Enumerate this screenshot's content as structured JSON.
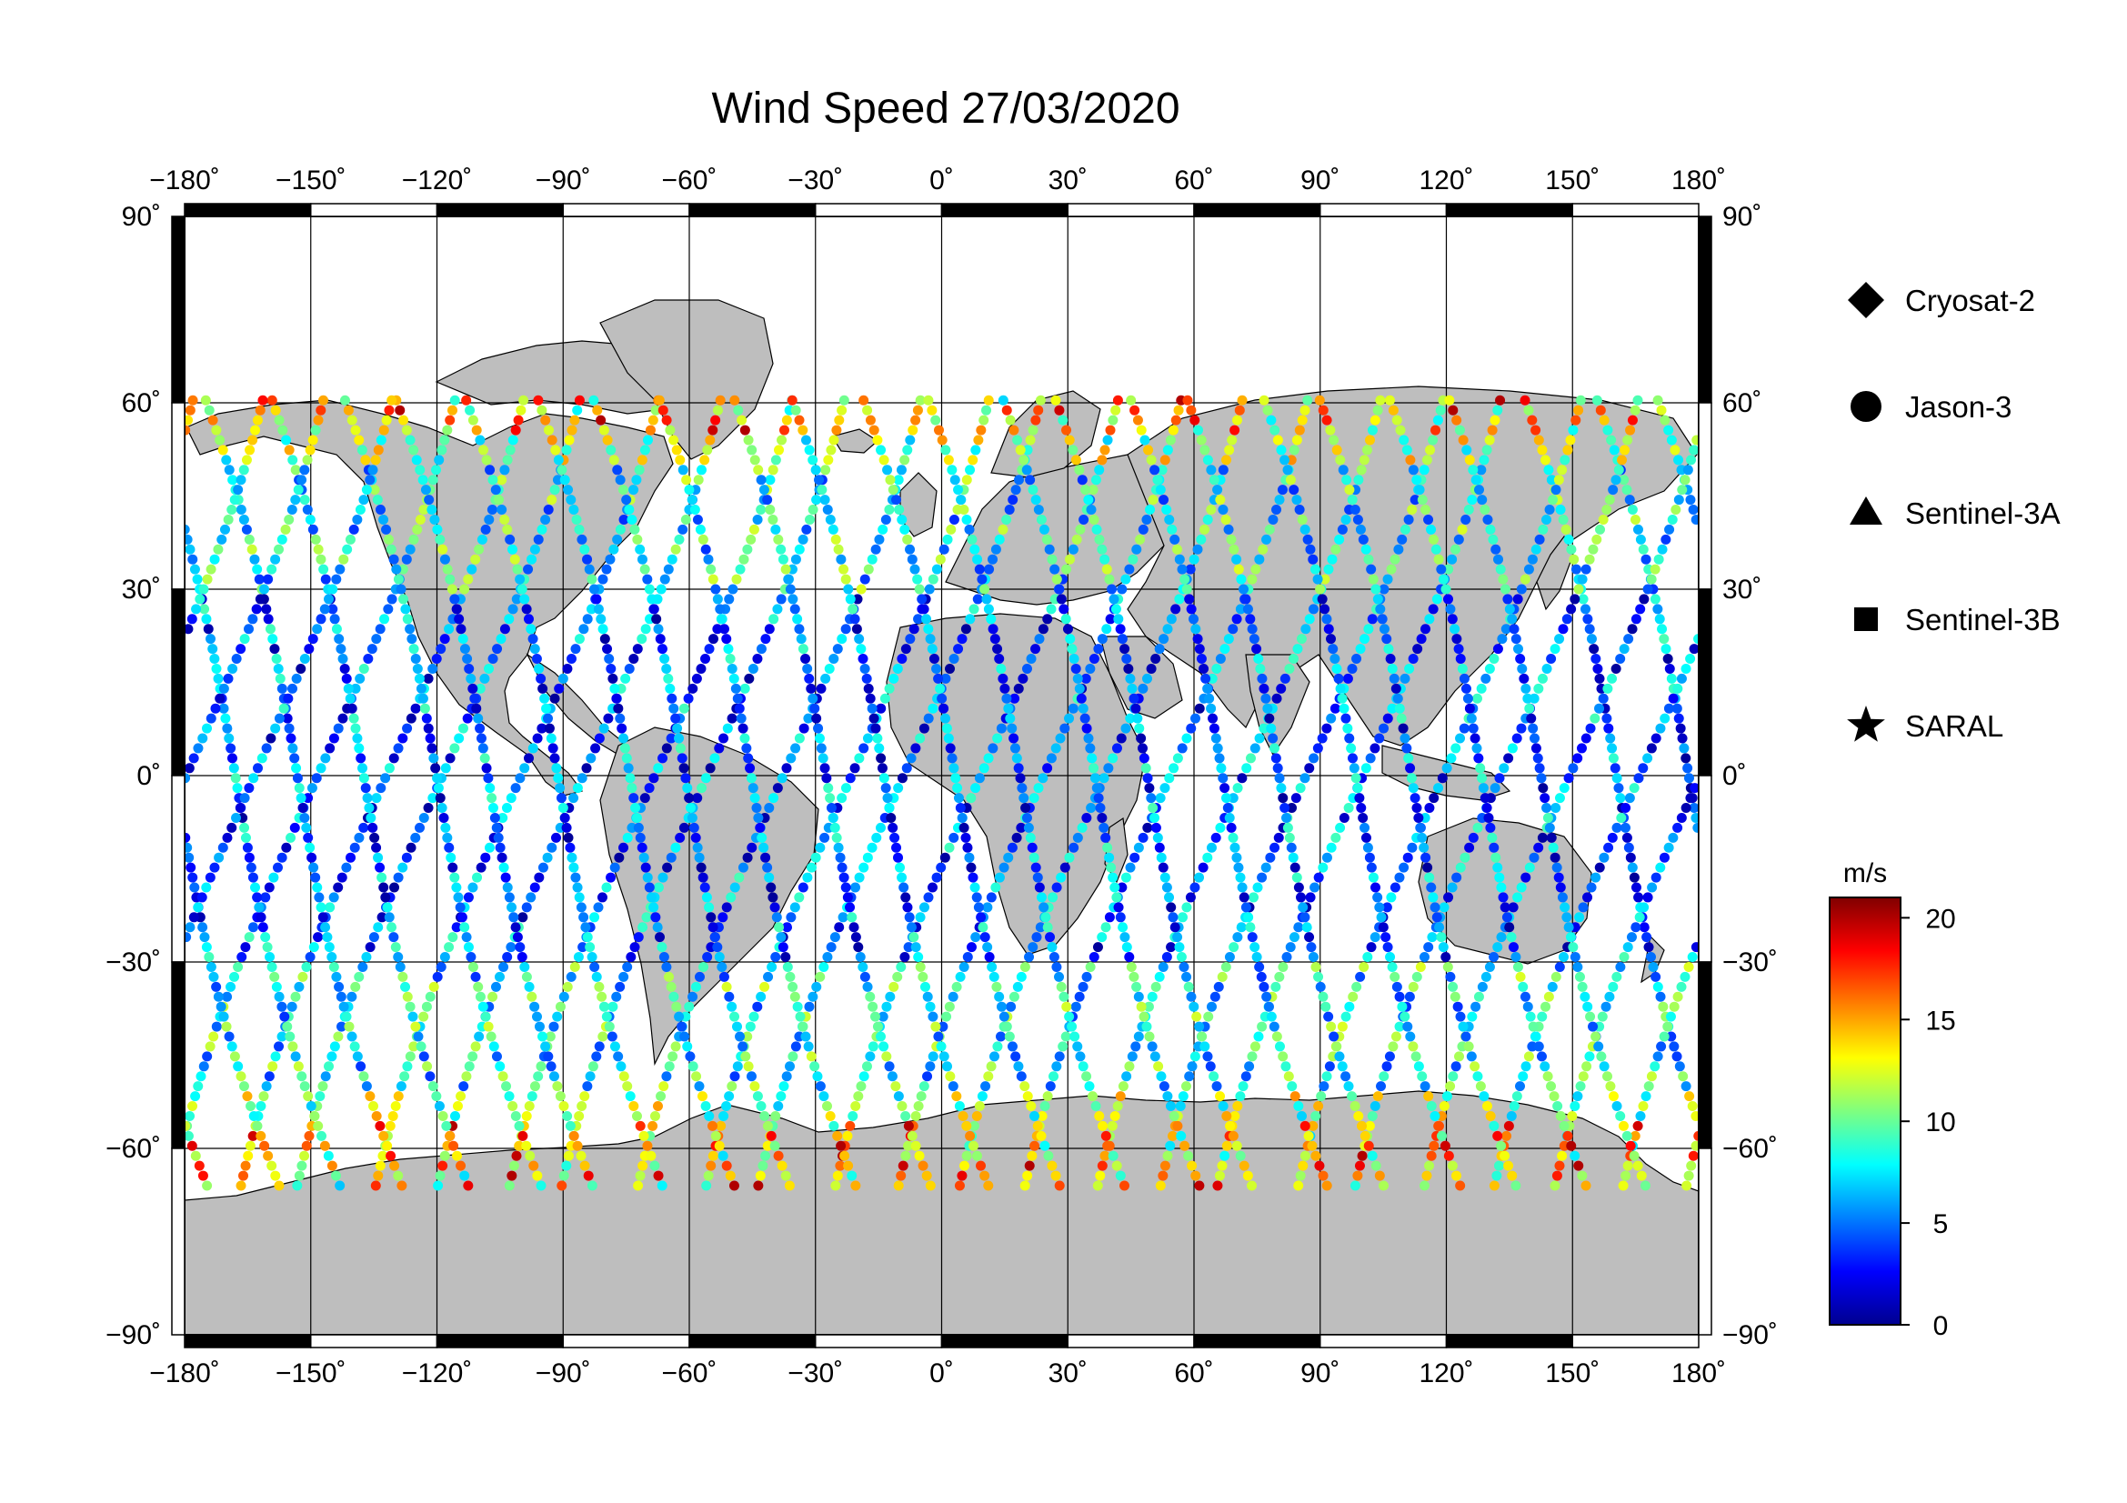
{
  "title": "Wind Speed 27/03/2020",
  "map": {
    "projection": "equirectangular",
    "lon_range": [
      -180,
      180
    ],
    "lat_range": [
      -90,
      90
    ],
    "lon_ticks": [
      -180,
      -150,
      -120,
      -90,
      -60,
      -30,
      0,
      30,
      60,
      90,
      120,
      150,
      180
    ],
    "lat_ticks": [
      -90,
      -60,
      -30,
      0,
      30,
      60,
      90
    ],
    "lon_tick_labels": [
      "−180˚",
      "−150˚",
      "−120˚",
      "−90˚",
      "−60˚",
      "−30˚",
      "0˚",
      "30˚",
      "60˚",
      "90˚",
      "120˚",
      "150˚",
      "180˚"
    ],
    "lat_tick_labels": [
      "−90˚",
      "−60˚",
      "−30˚",
      "0˚",
      "30˚",
      "60˚",
      "90˚"
    ],
    "grid": true,
    "land_color": "#bebebe",
    "ocean_color": "#ffffff",
    "frame": "alternating black/white"
  },
  "legend": {
    "placement": "right",
    "items": [
      {
        "label": "Cryosat-2",
        "marker": "diamond"
      },
      {
        "label": "Jason-3",
        "marker": "circle"
      },
      {
        "label": "Sentinel-3A",
        "marker": "triangle"
      },
      {
        "label": "Sentinel-3B",
        "marker": "square"
      },
      {
        "label": "SARAL",
        "marker": "star"
      }
    ]
  },
  "colorbar": {
    "unit": "m/s",
    "min": 0,
    "max": 21,
    "ticks": [
      0,
      5,
      10,
      15,
      20
    ],
    "tick_labels": [
      "0",
      "5",
      "10",
      "15",
      "20"
    ],
    "colormap": "jet"
  }
}
